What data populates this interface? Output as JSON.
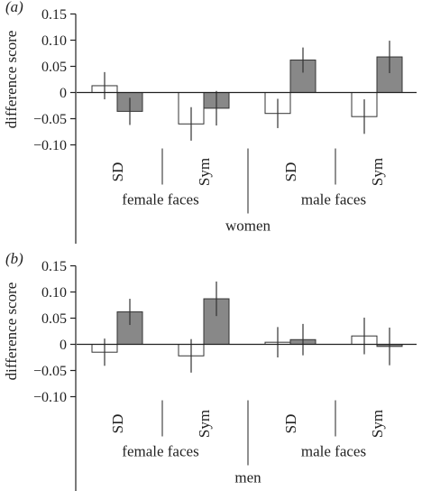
{
  "chart_data": [
    {
      "type": "bar",
      "panel_label": "(a)",
      "ylabel": "difference score",
      "ylim": [
        -0.1,
        0.15
      ],
      "y_ticks": [
        0.15,
        0.1,
        0.05,
        0,
        -0.05,
        -0.1
      ],
      "y_tick_labels": [
        "0.15",
        "0.10",
        "0.05",
        "0",
        "−0.05",
        "−0.10"
      ],
      "categories": [
        "SD",
        "Sym",
        "SD",
        "Sym"
      ],
      "group_labels": [
        "female faces",
        "male faces"
      ],
      "participant_label": "women",
      "series": [
        {
          "color": "#ffffff",
          "values": [
            0.013,
            -0.06,
            -0.04,
            -0.046
          ],
          "errors": [
            0.026,
            0.032,
            0.028,
            0.033
          ]
        },
        {
          "color": "#888888",
          "values": [
            -0.036,
            -0.03,
            0.062,
            0.068
          ],
          "errors": [
            0.026,
            0.033,
            0.024,
            0.031
          ]
        }
      ]
    },
    {
      "type": "bar",
      "panel_label": "(b)",
      "ylabel": "difference score",
      "ylim": [
        -0.1,
        0.15
      ],
      "y_ticks": [
        0.15,
        0.1,
        0.05,
        0,
        -0.05,
        -0.1
      ],
      "y_tick_labels": [
        "0.15",
        "0.10",
        "0.05",
        "0",
        "−0.05",
        "−0.10"
      ],
      "categories": [
        "SD",
        "Sym",
        "SD",
        "Sym"
      ],
      "group_labels": [
        "female faces",
        "male faces"
      ],
      "participant_label": "men",
      "series": [
        {
          "color": "#ffffff",
          "values": [
            -0.015,
            -0.022,
            0.004,
            0.016
          ],
          "errors": [
            0.026,
            0.032,
            0.029,
            0.035
          ]
        },
        {
          "color": "#888888",
          "values": [
            0.062,
            0.087,
            0.009,
            -0.004
          ],
          "errors": [
            0.025,
            0.033,
            0.03,
            0.036
          ]
        }
      ]
    }
  ]
}
